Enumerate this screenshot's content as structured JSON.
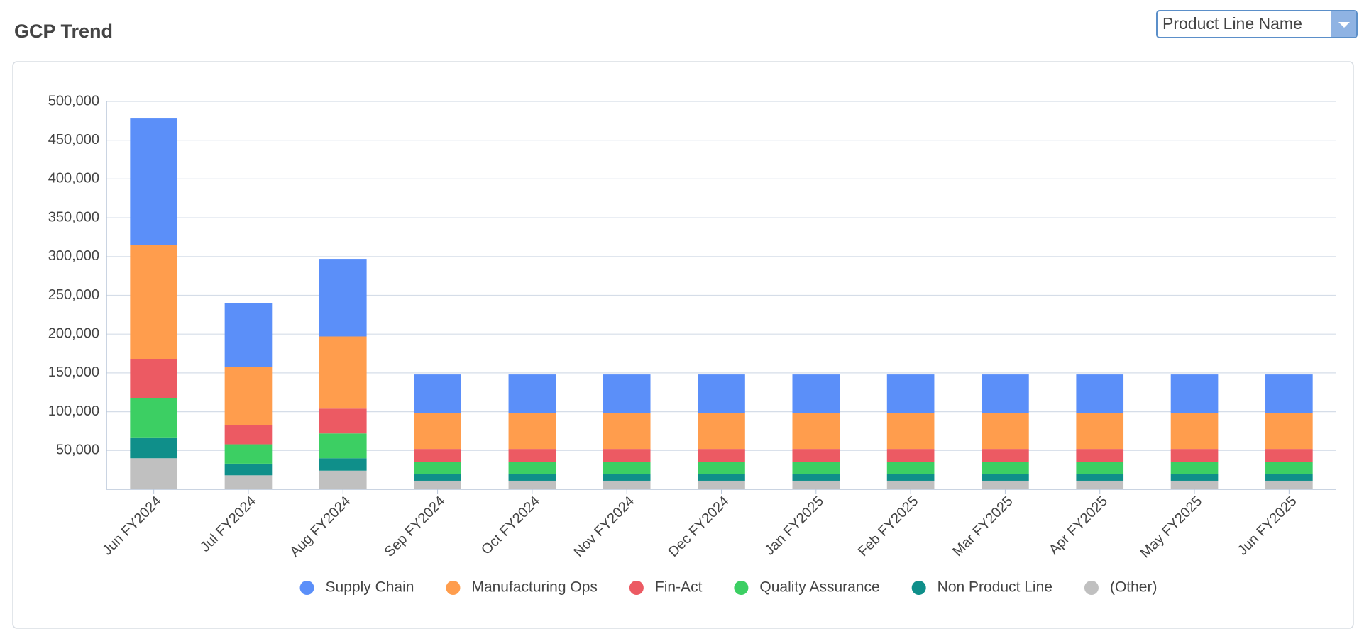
{
  "dropdown": {
    "label": "Product Line Name"
  },
  "chart_data": {
    "type": "stacked_bar",
    "title": "GCP Trend",
    "categories": [
      "Jun FY2024",
      "Jul FY2024",
      "Aug FY2024",
      "Sep FY2024",
      "Oct FY2024",
      "Nov FY2024",
      "Dec FY2024",
      "Jan FY2025",
      "Feb FY2025",
      "Mar FY2025",
      "Apr FY2025",
      "May FY2025",
      "Jun FY2025"
    ],
    "series": [
      {
        "name": "Supply Chain",
        "color": "#5b8ff9",
        "values": [
          163000,
          82000,
          100000,
          50000,
          50000,
          50000,
          50000,
          50000,
          50000,
          50000,
          50000,
          50000,
          50000
        ]
      },
      {
        "name": "Manufacturing Ops",
        "color": "#ff9d4d",
        "values": [
          147000,
          75000,
          93000,
          46000,
          46000,
          46000,
          46000,
          46000,
          46000,
          46000,
          46000,
          46000,
          46000
        ]
      },
      {
        "name": "Fin-Act",
        "color": "#ec5a63",
        "values": [
          51000,
          25000,
          32000,
          17000,
          17000,
          17000,
          17000,
          17000,
          17000,
          17000,
          17000,
          17000,
          17000
        ]
      },
      {
        "name": "Quality Assurance",
        "color": "#3ccf63",
        "values": [
          51000,
          25000,
          32000,
          15000,
          15000,
          15000,
          15000,
          15000,
          15000,
          15000,
          15000,
          15000,
          15000
        ]
      },
      {
        "name": "Non Product Line",
        "color": "#0f8f8a",
        "values": [
          26000,
          15000,
          16000,
          9000,
          9000,
          9000,
          9000,
          9000,
          9000,
          9000,
          9000,
          9000,
          9000
        ]
      },
      {
        "name": "(Other)",
        "color": "#c0c0c0",
        "values": [
          40000,
          18000,
          24000,
          11000,
          11000,
          11000,
          11000,
          11000,
          11000,
          11000,
          11000,
          11000,
          11000
        ]
      }
    ],
    "ylim": [
      0,
      500000
    ],
    "yticks": [
      {
        "value": 50000,
        "label": "50,000"
      },
      {
        "value": 100000,
        "label": "100,000"
      },
      {
        "value": 150000,
        "label": "150,000"
      },
      {
        "value": 200000,
        "label": "200,000"
      },
      {
        "value": 250000,
        "label": "250,000"
      },
      {
        "value": 300000,
        "label": "300,000"
      },
      {
        "value": 350000,
        "label": "350,000"
      },
      {
        "value": 400000,
        "label": "400,000"
      },
      {
        "value": 450000,
        "label": "450,000"
      },
      {
        "value": 500000,
        "label": "500,000"
      }
    ],
    "grid": true,
    "legend": "bottom"
  }
}
